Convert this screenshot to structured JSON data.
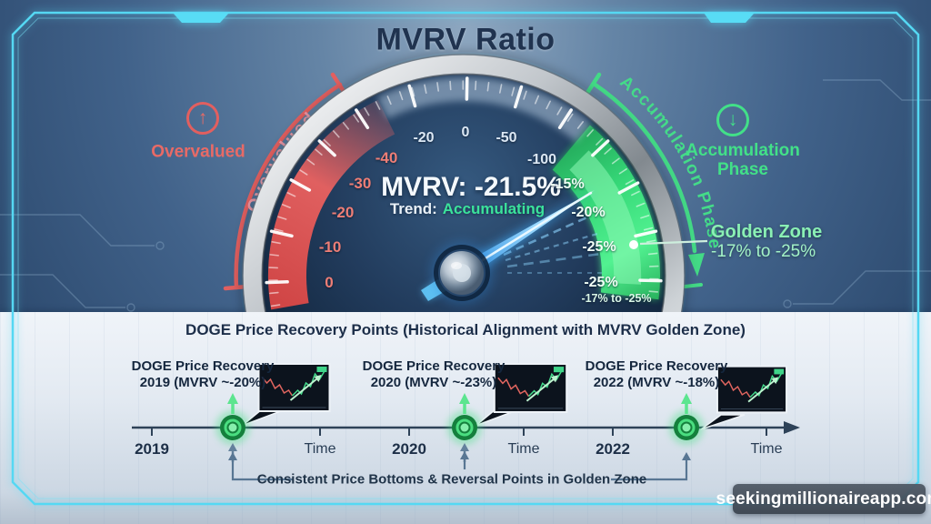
{
  "title": "MVRV Ratio",
  "colors": {
    "accent_red": "#e25f5f",
    "accent_green": "#42e088",
    "neon_border": "#55d8f3",
    "navy_text": "#20334f",
    "golden_zone_text": "#8af0b4"
  },
  "icons": {
    "up_glyph": "↑",
    "down_glyph": "↓"
  },
  "gauge": {
    "value_label": "MVRV: -21.5%",
    "trend_prefix": "Trend:",
    "trend_value": "Accumulating",
    "left_label": "Overvalued",
    "left_arc_text": "Overvalued",
    "right_label": "Accumulation Phase",
    "right_arc_text": "Accumulation Phase",
    "golden_zone_title": "Golden Zone",
    "golden_zone_range": "-17% to -25%",
    "inner_range_note": "-17% to -25%",
    "ticks_red": [
      "0",
      "-10",
      "-20",
      "-30",
      "-40"
    ],
    "ticks_top": [
      "-20",
      "0",
      "-50",
      "-100"
    ],
    "ticks_green": [
      "-15%",
      "-20%",
      "-25%",
      "-25%"
    ]
  },
  "timeline": {
    "heading": "DOGE Price Recovery Points (Historical Alignment with MVRV Golden Zone)",
    "events": [
      {
        "line1": "DOGE Price Recovery",
        "line2": "2019 (MVRV ~-20%)",
        "year": "2019",
        "axis_label": "Time"
      },
      {
        "line1": "DOGE Price Recovery",
        "line2": "2020 (MVRV ~-23%)",
        "year": "2020",
        "axis_label": "Time"
      },
      {
        "line1": "DOGE Price Recovery",
        "line2": "2022 (MVRV ~-18%)",
        "year": "2022",
        "axis_label": "Time"
      }
    ],
    "footnote": "Consistent Price Bottoms & Reversal Points in Golden Zone"
  },
  "watermark": "seekingmillionaireapp.com"
}
